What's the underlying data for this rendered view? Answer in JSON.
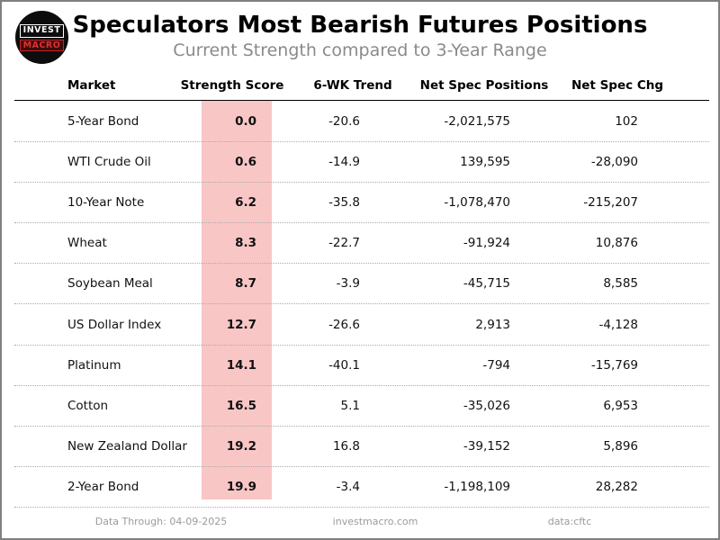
{
  "header": {
    "logo_line1": "INVEST",
    "logo_line2": "MACRO"
  },
  "chart_data": {
    "type": "table",
    "title": "Speculators Most Bearish Futures Positions",
    "subtitle": "Current Strength compared to 3-Year Range",
    "columns": [
      "Market",
      "Strength Score",
      "6-WK Trend",
      "Net Spec Positions",
      "Net Spec Chg"
    ],
    "rows": [
      {
        "market": "5-Year Bond",
        "score": "0.0",
        "trend": "-20.6",
        "net_pos": "-2,021,575",
        "net_chg": "102"
      },
      {
        "market": "WTI Crude Oil",
        "score": "0.6",
        "trend": "-14.9",
        "net_pos": "139,595",
        "net_chg": "-28,090"
      },
      {
        "market": "10-Year Note",
        "score": "6.2",
        "trend": "-35.8",
        "net_pos": "-1,078,470",
        "net_chg": "-215,207"
      },
      {
        "market": "Wheat",
        "score": "8.3",
        "trend": "-22.7",
        "net_pos": "-91,924",
        "net_chg": "10,876"
      },
      {
        "market": "Soybean Meal",
        "score": "8.7",
        "trend": "-3.9",
        "net_pos": "-45,715",
        "net_chg": "8,585"
      },
      {
        "market": "US Dollar Index",
        "score": "12.7",
        "trend": "-26.6",
        "net_pos": "2,913",
        "net_chg": "-4,128"
      },
      {
        "market": "Platinum",
        "score": "14.1",
        "trend": "-40.1",
        "net_pos": "-794",
        "net_chg": "-15,769"
      },
      {
        "market": "Cotton",
        "score": "16.5",
        "trend": "5.1",
        "net_pos": "-35,026",
        "net_chg": "6,953"
      },
      {
        "market": "New Zealand Dollar",
        "score": "19.2",
        "trend": "16.8",
        "net_pos": "-39,152",
        "net_chg": "5,896"
      },
      {
        "market": "2-Year Bond",
        "score": "19.9",
        "trend": "-3.4",
        "net_pos": "-1,198,109",
        "net_chg": "28,282"
      }
    ],
    "layout": {
      "score_column_highlight": "#f9c6c6",
      "grid": "dotted-row-separators",
      "header_rule_color": "#000000"
    }
  },
  "footer": {
    "data_through": "Data Through: 04-09-2025",
    "website": "investmacro.com",
    "source": "data:cftc"
  },
  "colors": {
    "score_band": "#f9c6c6",
    "subtitle_gray": "#8a8a8a",
    "footer_gray": "#9b9b9b",
    "logo_red": "#e03030",
    "page_border": "#808080"
  }
}
